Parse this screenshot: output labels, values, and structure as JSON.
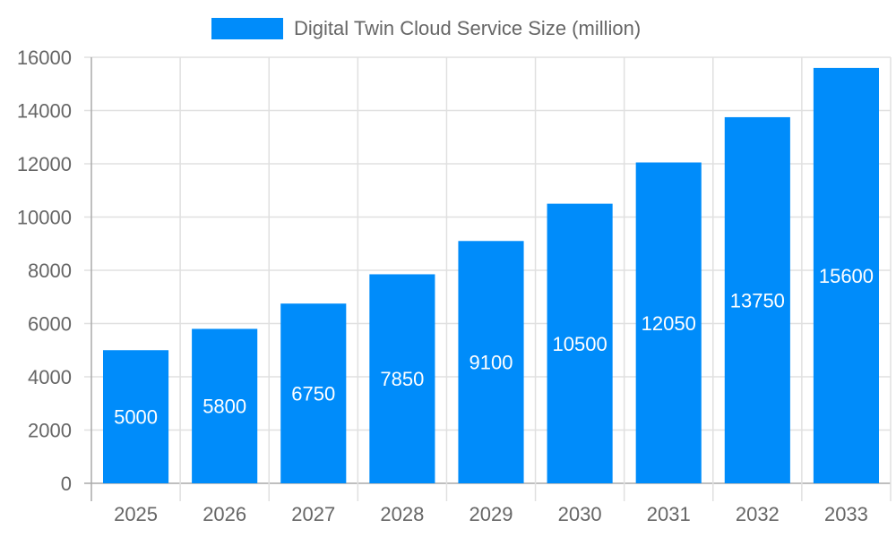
{
  "chart_data": {
    "type": "bar",
    "categories": [
      "2025",
      "2026",
      "2027",
      "2028",
      "2029",
      "2030",
      "2031",
      "2032",
      "2033"
    ],
    "series": [
      {
        "name": "Digital Twin Cloud Service Size (million)",
        "values": [
          5000,
          5800,
          6750,
          7850,
          9100,
          10500,
          12050,
          13750,
          15600
        ],
        "color": "#008cfa"
      }
    ],
    "ylim": [
      0,
      16000
    ],
    "yticks": [
      "0",
      "2000",
      "4000",
      "6000",
      "8000",
      "10000",
      "12000",
      "14000",
      "16000"
    ],
    "grid": true,
    "legend": "top-center",
    "data_labels": true
  }
}
